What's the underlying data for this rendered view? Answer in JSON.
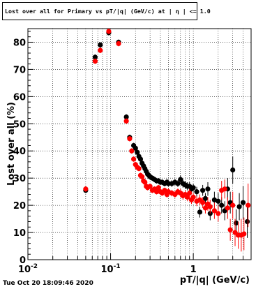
{
  "title": "Lost over all for Primary vs pT/|q| (GeV/c) at | η | <= 1.0",
  "footer_date": "Tue Oct 20 18:09:46 2020",
  "colors": {
    "series_black": "#000000",
    "series_red": "#ff0000",
    "grid": "#000000"
  },
  "chart_data": {
    "type": "scatter",
    "title": "Lost over all for Primary vs pT/|q| (GeV/c) at | η | <= 1.0",
    "xlabel": "pT/|q| (GeV/c)",
    "ylabel": "Lost over all (%)",
    "x_scale": "log",
    "xlim": [
      0.01,
      5.0
    ],
    "ylim": [
      0,
      85
    ],
    "grid": true,
    "y_ticks": [
      0,
      10,
      20,
      30,
      40,
      50,
      60,
      70,
      80
    ],
    "x_major_ticks": [
      {
        "value": 0.01,
        "label": "10",
        "sup": "-2"
      },
      {
        "value": 0.1,
        "label": "10",
        "sup": "-1"
      },
      {
        "value": 1,
        "label": "1",
        "sup": ""
      }
    ],
    "series": [
      {
        "color": "#000000",
        "points": [
          [
            0.05,
            25.5,
            1.0
          ],
          [
            0.065,
            74.5,
            1.0
          ],
          [
            0.075,
            79.0,
            1.0
          ],
          [
            0.095,
            83.5,
            1.0
          ],
          [
            0.125,
            80.0,
            1.0
          ],
          [
            0.155,
            52.5,
            1.0
          ],
          [
            0.17,
            45.0,
            1.0
          ],
          [
            0.19,
            42.0,
            1.0
          ],
          [
            0.2,
            41.0,
            1.0
          ],
          [
            0.21,
            39.5,
            1.0
          ],
          [
            0.22,
            38.0,
            1.0
          ],
          [
            0.23,
            37.0,
            1.0
          ],
          [
            0.24,
            35.5,
            1.0
          ],
          [
            0.25,
            34.5,
            1.0
          ],
          [
            0.26,
            33.5,
            1.0
          ],
          [
            0.27,
            32.5,
            1.0
          ],
          [
            0.28,
            31.5,
            1.0
          ],
          [
            0.29,
            31.0,
            1.0
          ],
          [
            0.3,
            30.5,
            1.0
          ],
          [
            0.32,
            30.0,
            1.0
          ],
          [
            0.34,
            29.5,
            1.0
          ],
          [
            0.36,
            29.0,
            1.0
          ],
          [
            0.38,
            29.0,
            1.0
          ],
          [
            0.4,
            28.5,
            1.0
          ],
          [
            0.42,
            28.5,
            1.0
          ],
          [
            0.45,
            28.0,
            1.0
          ],
          [
            0.48,
            28.5,
            1.2
          ],
          [
            0.5,
            28.0,
            1.2
          ],
          [
            0.55,
            28.0,
            1.2
          ],
          [
            0.6,
            28.5,
            1.2
          ],
          [
            0.65,
            28.0,
            1.2
          ],
          [
            0.7,
            29.5,
            1.5
          ],
          [
            0.75,
            28.0,
            1.5
          ],
          [
            0.8,
            27.5,
            1.5
          ],
          [
            0.85,
            27.0,
            1.5
          ],
          [
            0.9,
            27.0,
            1.5
          ],
          [
            0.95,
            26.0,
            1.5
          ],
          [
            1.0,
            26.5,
            1.5
          ],
          [
            1.1,
            25.0,
            1.8
          ],
          [
            1.2,
            17.5,
            2.0
          ],
          [
            1.3,
            25.5,
            2.0
          ],
          [
            1.4,
            22.5,
            2.0
          ],
          [
            1.5,
            26.0,
            2.5
          ],
          [
            1.6,
            17.0,
            2.5
          ],
          [
            1.8,
            22.0,
            3.0
          ],
          [
            2.0,
            21.5,
            3.0
          ],
          [
            2.2,
            20.0,
            3.0
          ],
          [
            2.4,
            18.0,
            3.5
          ],
          [
            2.6,
            26.0,
            4.0
          ],
          [
            2.8,
            21.0,
            4.0
          ],
          [
            3.0,
            33.0,
            5.0
          ],
          [
            3.3,
            13.5,
            5.0
          ],
          [
            3.6,
            19.5,
            5.0
          ],
          [
            4.0,
            21.0,
            6.0
          ],
          [
            4.5,
            14.0,
            6.0
          ]
        ]
      },
      {
        "color": "#ff0000",
        "points": [
          [
            0.05,
            26.0,
            1.0
          ],
          [
            0.065,
            73.0,
            1.0
          ],
          [
            0.075,
            77.0,
            1.0
          ],
          [
            0.095,
            84.0,
            1.0
          ],
          [
            0.125,
            79.5,
            1.0
          ],
          [
            0.155,
            51.0,
            1.0
          ],
          [
            0.17,
            44.5,
            1.0
          ],
          [
            0.18,
            40.0,
            1.0
          ],
          [
            0.19,
            37.0,
            1.0
          ],
          [
            0.2,
            35.0,
            1.0
          ],
          [
            0.21,
            34.0,
            1.0
          ],
          [
            0.22,
            33.5,
            1.0
          ],
          [
            0.23,
            31.0,
            1.0
          ],
          [
            0.24,
            30.5,
            1.0
          ],
          [
            0.25,
            29.0,
            1.0
          ],
          [
            0.26,
            28.5,
            1.0
          ],
          [
            0.27,
            27.0,
            1.0
          ],
          [
            0.28,
            26.5,
            1.0
          ],
          [
            0.3,
            27.0,
            1.0
          ],
          [
            0.32,
            25.5,
            1.0
          ],
          [
            0.34,
            26.0,
            1.0
          ],
          [
            0.36,
            25.0,
            1.0
          ],
          [
            0.38,
            26.5,
            1.0
          ],
          [
            0.4,
            25.0,
            1.0
          ],
          [
            0.42,
            24.5,
            1.0
          ],
          [
            0.45,
            25.5,
            1.0
          ],
          [
            0.48,
            24.0,
            1.2
          ],
          [
            0.5,
            25.0,
            1.2
          ],
          [
            0.55,
            24.5,
            1.2
          ],
          [
            0.6,
            24.0,
            1.2
          ],
          [
            0.65,
            25.0,
            1.2
          ],
          [
            0.7,
            24.5,
            1.5
          ],
          [
            0.75,
            23.5,
            1.5
          ],
          [
            0.8,
            24.0,
            1.5
          ],
          [
            0.85,
            23.0,
            1.5
          ],
          [
            0.9,
            24.5,
            1.5
          ],
          [
            0.95,
            22.0,
            1.5
          ],
          [
            1.0,
            23.0,
            1.5
          ],
          [
            1.1,
            21.5,
            1.8
          ],
          [
            1.2,
            22.0,
            2.0
          ],
          [
            1.3,
            21.0,
            2.0
          ],
          [
            1.4,
            19.0,
            2.0
          ],
          [
            1.5,
            20.5,
            2.5
          ],
          [
            1.6,
            19.5,
            2.5
          ],
          [
            1.8,
            18.0,
            3.0
          ],
          [
            2.0,
            17.0,
            3.0
          ],
          [
            2.2,
            25.5,
            3.5
          ],
          [
            2.4,
            26.0,
            3.5
          ],
          [
            2.6,
            19.0,
            4.0
          ],
          [
            2.8,
            11.0,
            4.0
          ],
          [
            3.0,
            20.0,
            5.0
          ],
          [
            3.2,
            10.0,
            5.0
          ],
          [
            3.5,
            9.0,
            5.0
          ],
          [
            3.8,
            9.0,
            6.0
          ],
          [
            4.1,
            9.5,
            6.0
          ],
          [
            4.6,
            20.0,
            8.0
          ]
        ]
      }
    ]
  }
}
